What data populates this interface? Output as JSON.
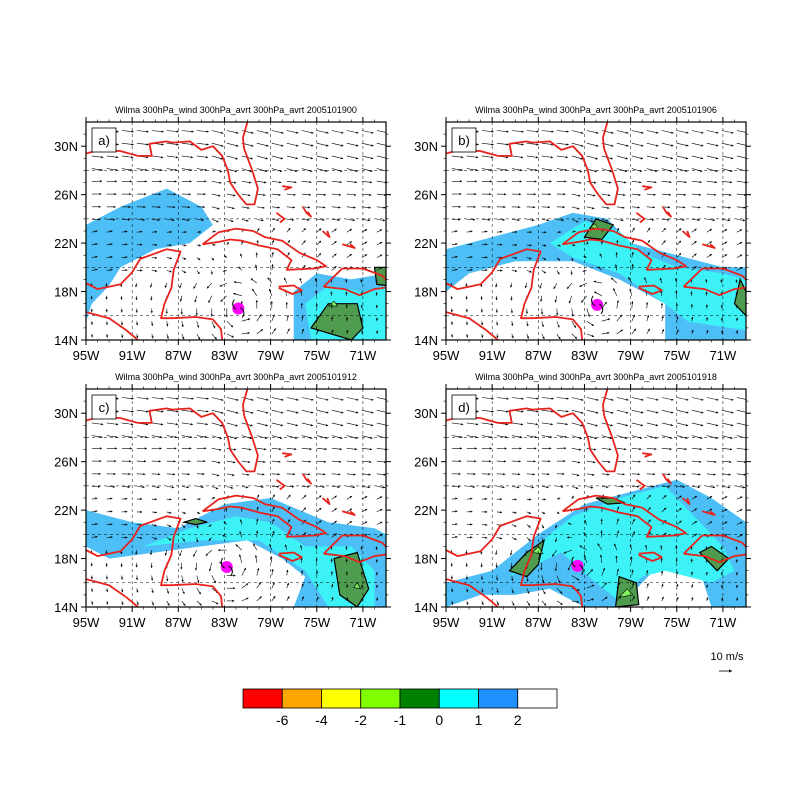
{
  "panels": [
    {
      "id": "a",
      "tag": "a)",
      "title": "Wilma 300hPa_wind 300hPa_avrt 300hPa_avrt 2005101900",
      "storm_lon": -81.8,
      "storm_lat": 16.6
    },
    {
      "id": "b",
      "tag": "b)",
      "title": "Wilma 300hPa_wind 300hPa_avrt 300hPa_avrt 2005101906",
      "storm_lon": -81.9,
      "storm_lat": 16.9
    },
    {
      "id": "c",
      "tag": "c)",
      "title": "Wilma 300hPa_wind 300hPa_avrt 300hPa_avrt 2005101912",
      "storm_lon": -82.8,
      "storm_lat": 17.3
    },
    {
      "id": "d",
      "tag": "d)",
      "title": "Wilma 300hPa_wind 300hPa_avrt 300hPa_avrt 2005101918",
      "storm_lon": -83.6,
      "storm_lat": 17.4
    }
  ],
  "axes": {
    "lon_ticks": [
      -95,
      -91,
      -87,
      -83,
      -79,
      -75,
      -71
    ],
    "lon_tick_labels": [
      "95W",
      "91W",
      "87W",
      "83W",
      "79W",
      "75W",
      "71W"
    ],
    "lat_ticks": [
      14,
      18,
      22,
      26,
      30
    ],
    "lat_tick_labels": [
      "14N",
      "18N",
      "22N",
      "26N",
      "30N"
    ],
    "lon_range": [
      -95,
      -69
    ],
    "lat_range": [
      14,
      32
    ]
  },
  "reference_vector": {
    "label": "10 m/s"
  },
  "colorbar": {
    "colors": [
      "#ff0000",
      "#ffa500",
      "#ffff00",
      "#7fff00",
      "#008000",
      "#00ffff",
      "#1e90ff",
      "#ffffff"
    ],
    "labels": [
      "-6",
      "-4",
      "-2",
      "-1",
      "0",
      "1",
      "2"
    ]
  },
  "colors": {
    "coast": "#e8231d",
    "storm": "#ff00ff",
    "shade_1_2": "#4dbef6",
    "shade_0_1": "#3df2f6",
    "shade_neg1_0": "#4f9b4f",
    "shade_neg2_neg1": "#7ff25f"
  }
}
